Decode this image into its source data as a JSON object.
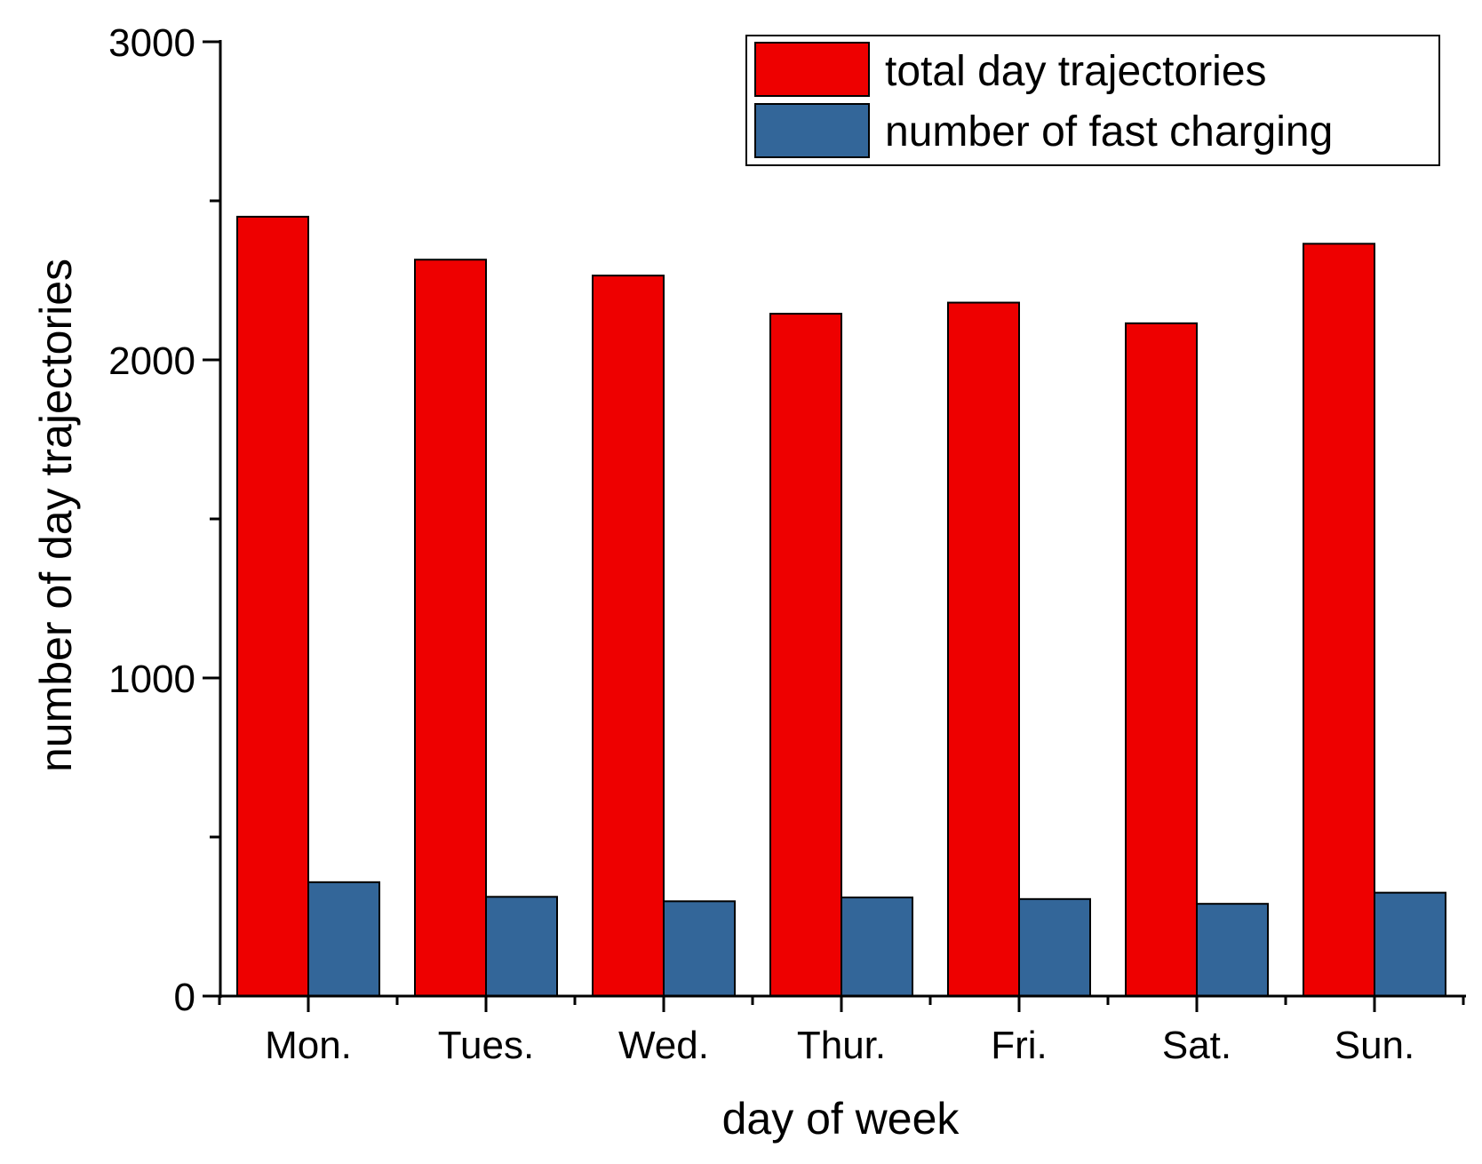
{
  "chart_data": {
    "type": "bar",
    "title": "",
    "xlabel": "day of week",
    "ylabel": "number of day trajectories",
    "ylim": [
      0,
      3000
    ],
    "yticks": [
      0,
      1000,
      2000,
      3000
    ],
    "yticks_minor": [
      500,
      1500,
      2500
    ],
    "grid": false,
    "legend_position": "top-right",
    "categories": [
      "Mon.",
      "Tues.",
      "Wed.",
      "Thur.",
      "Fri.",
      "Sat.",
      "Sun."
    ],
    "series": [
      {
        "name": "total day trajectories",
        "color": "#ee0000",
        "values": [
          2450,
          2315,
          2265,
          2145,
          2180,
          2115,
          2365
        ]
      },
      {
        "name": "number of fast charging",
        "color": "#336699",
        "values": [
          358,
          312,
          298,
          310,
          305,
          290,
          325
        ]
      }
    ]
  }
}
